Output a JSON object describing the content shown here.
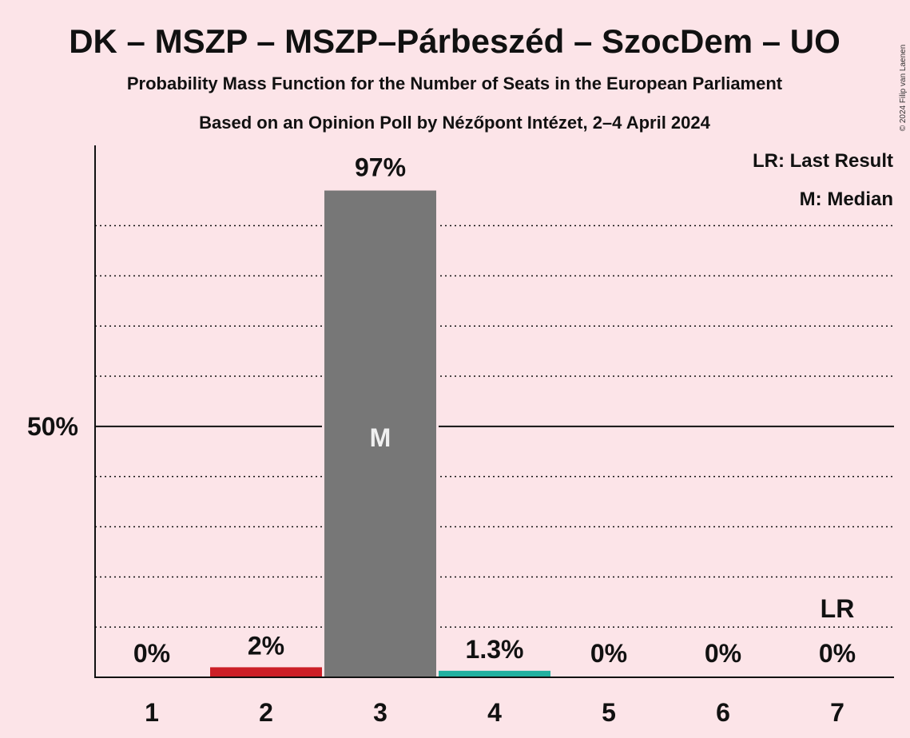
{
  "title": "DK – MSZP – MSZP–Párbeszéd – SzocDem – UO",
  "subtitle1": "Probability Mass Function for the Number of Seats in the European Parliament",
  "subtitle2": "Based on an Opinion Poll by Nézőpont Intézet, 2–4 April 2024",
  "copyright": "© 2024 Filip van Laenen",
  "legend": {
    "lr": "LR: Last Result",
    "median": "M: Median"
  },
  "chart_data": {
    "type": "bar",
    "categories": [
      "1",
      "2",
      "3",
      "4",
      "5",
      "6",
      "7"
    ],
    "values": [
      0,
      2,
      97,
      1.3,
      0,
      0,
      0
    ],
    "labels": [
      "0%",
      "2%",
      "97%",
      "1.3%",
      "0%",
      "0%",
      "0%"
    ],
    "colors": [
      "#777777",
      "#cc1f27",
      "#777777",
      "#22b0a0",
      "#777777",
      "#777777",
      "#777777"
    ],
    "ylim": [
      0,
      106
    ],
    "yticks": [
      {
        "value": 50,
        "label": "50%"
      }
    ],
    "median_category": "3",
    "median_marker": "M",
    "last_result_category": "7",
    "last_result_marker": "LR",
    "grid": "dotted every 10%, solid at 50%"
  }
}
